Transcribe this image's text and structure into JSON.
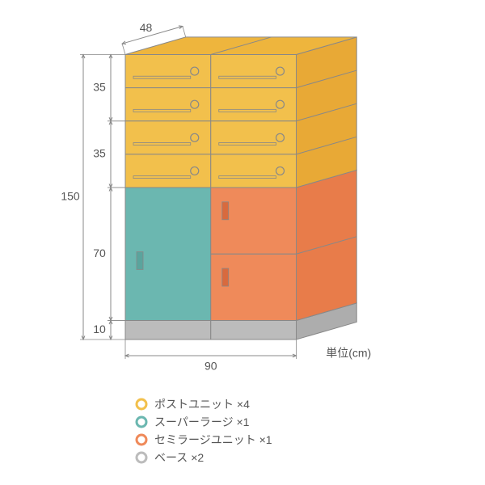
{
  "diagram": {
    "type": "infographic",
    "background_color": "#ffffff",
    "stroke_color": "#888888",
    "stroke_width": 1,
    "text_color": "#555555",
    "label_fontsize": 14,
    "dimensions": {
      "depth": "48",
      "post_height_1": "35",
      "post_height_2": "35",
      "lower_height": "70",
      "base_height": "10",
      "total_height": "150",
      "width": "90",
      "unit_label": "単位(cm)"
    },
    "colors": {
      "post_front": "#f2c04c",
      "post_top": "#eeb53d",
      "post_side": "#e8a936",
      "super_large": "#6bb7b0",
      "semi_large_front": "#ef8a5a",
      "semi_large_side": "#e87c4a",
      "base_front": "#bcbcbc",
      "base_side": "#adadad",
      "slot_fill": "#888888"
    },
    "legend": [
      {
        "color": "#f2c04c",
        "label": "ポストユニット ×4"
      },
      {
        "color": "#6bb7b0",
        "label": "スーパーラージ ×1"
      },
      {
        "color": "#ef8a5a",
        "label": "セミラージユニット ×1"
      },
      {
        "color": "#bcbcbc",
        "label": "ベース ×2"
      }
    ]
  }
}
